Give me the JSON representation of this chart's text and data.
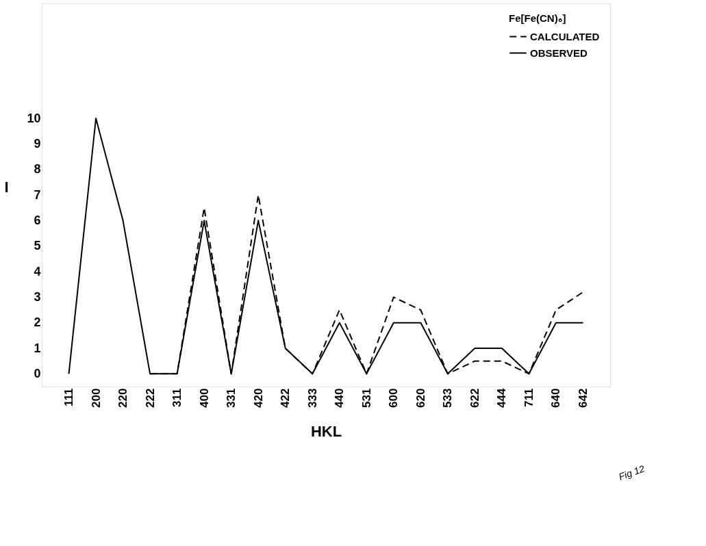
{
  "chart_data": {
    "type": "line",
    "xlabel": "HKL",
    "ylabel": "I",
    "legend_title": "Fe[Fe(CN)₆]",
    "categories": [
      "111",
      "200",
      "220",
      "222",
      "311",
      "400",
      "331",
      "420",
      "422",
      "333",
      "440",
      "531",
      "600",
      "620",
      "533",
      "622",
      "444",
      "711",
      "640",
      "642"
    ],
    "series": [
      {
        "name": "CALCULATED",
        "color": "#000000",
        "line_style": "dashed",
        "values": [
          null,
          null,
          null,
          0,
          0,
          6.5,
          0,
          7,
          1,
          0,
          2.5,
          0,
          3,
          2.5,
          0,
          0.5,
          0.5,
          0,
          2.5,
          3.2
        ]
      },
      {
        "name": "OBSERVED",
        "color": "#000000",
        "line_style": "solid",
        "values": [
          0,
          10,
          6,
          0,
          0,
          6,
          0,
          6,
          1,
          0,
          2,
          0,
          2,
          2,
          0,
          1,
          1,
          0,
          2,
          2
        ]
      }
    ],
    "ylim": [
      -0.5,
      14.5
    ],
    "yticks": [
      0,
      1,
      2,
      3,
      4,
      5,
      6,
      7,
      8,
      9,
      10
    ],
    "grid": false,
    "legend": "top right",
    "marker": "none",
    "annotations": [
      "Fig 12"
    ]
  }
}
